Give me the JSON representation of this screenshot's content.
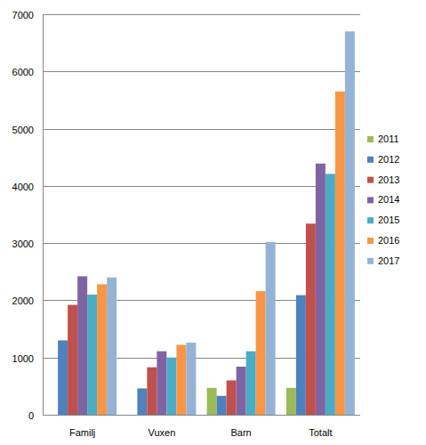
{
  "chart_data": {
    "type": "bar",
    "categories": [
      "Familj",
      "Vuxen",
      "Barn",
      "Totalt"
    ],
    "series": [
      {
        "name": "2011",
        "color": "#9bbb59",
        "values": [
          null,
          null,
          470,
          470
        ]
      },
      {
        "name": "2012",
        "color": "#4f81bd",
        "values": [
          1300,
          460,
          330,
          2090
        ]
      },
      {
        "name": "2013",
        "color": "#c0504d",
        "values": [
          1920,
          830,
          600,
          3340
        ]
      },
      {
        "name": "2014",
        "color": "#8064a2",
        "values": [
          2420,
          1110,
          840,
          4390
        ]
      },
      {
        "name": "2015",
        "color": "#4bacc6",
        "values": [
          2100,
          1000,
          1110,
          4210
        ]
      },
      {
        "name": "2016",
        "color": "#f79646",
        "values": [
          2280,
          1220,
          2160,
          5650
        ]
      },
      {
        "name": "2017",
        "color": "#95b3d7",
        "values": [
          2400,
          1260,
          3020,
          6700
        ]
      }
    ],
    "ylim": [
      0,
      7000
    ],
    "yticks": [
      0,
      1000,
      2000,
      3000,
      4000,
      5000,
      6000,
      7000
    ],
    "grid": true,
    "legend": "right"
  }
}
